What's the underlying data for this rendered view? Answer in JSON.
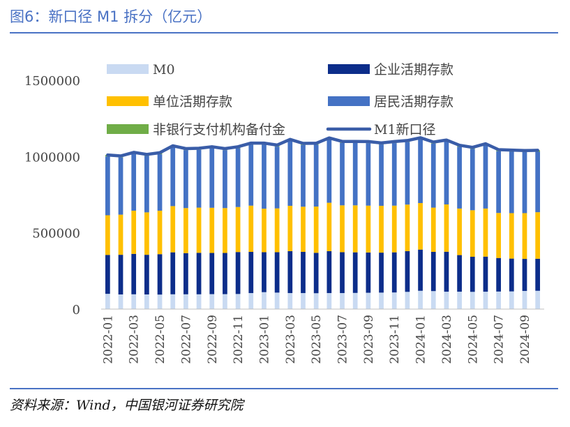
{
  "header": {
    "title": "图6：新口径 M1 拆分（亿元）"
  },
  "footer": {
    "source": "资料来源：Wind，中国银河证券研究院"
  },
  "chart_data": {
    "type": "bar",
    "stacked": true,
    "categories": [
      "2022-01",
      "2022-02",
      "2022-03",
      "2022-04",
      "2022-05",
      "2022-06",
      "2022-07",
      "2022-08",
      "2022-09",
      "2022-10",
      "2022-11",
      "2022-12",
      "2023-01",
      "2023-02",
      "2023-03",
      "2023-04",
      "2023-05",
      "2023-06",
      "2023-07",
      "2023-08",
      "2023-09",
      "2023-10",
      "2023-11",
      "2023-12",
      "2024-01",
      "2024-02",
      "2024-03",
      "2024-04",
      "2024-05",
      "2024-06",
      "2024-07",
      "2024-08",
      "2024-09",
      "2024-10"
    ],
    "tick_labels": [
      "2022-01",
      "2022-03",
      "2022-05",
      "2022-07",
      "2022-09",
      "2022-11",
      "2023-01",
      "2023-03",
      "2023-05",
      "2023-07",
      "2023-09",
      "2023-11",
      "2024-01",
      "2024-03",
      "2024-05",
      "2024-07",
      "2024-09"
    ],
    "ylim": [
      0,
      1500000
    ],
    "yticks": [
      "0",
      "500000",
      "1000000",
      "1500000"
    ],
    "grid": false,
    "legend_position": "top",
    "series": [
      {
        "name": "M0",
        "kind": "bar",
        "color": "#c9daf2",
        "values": [
          100000,
          96000,
          97000,
          96000,
          95000,
          97000,
          97000,
          97000,
          98000,
          98000,
          99000,
          105000,
          111000,
          108000,
          105000,
          105000,
          104000,
          105000,
          105000,
          106000,
          107000,
          108000,
          109000,
          113000,
          120000,
          118000,
          114000,
          114000,
          113000,
          114000,
          115000,
          116000,
          119000,
          120000
        ]
      },
      {
        "name": "企业活期存款",
        "kind": "bar",
        "color": "#0c2d8a",
        "values": [
          255000,
          260000,
          265000,
          260000,
          265000,
          275000,
          270000,
          272000,
          270000,
          270000,
          275000,
          270000,
          262000,
          265000,
          275000,
          270000,
          265000,
          275000,
          268000,
          266000,
          264000,
          262000,
          263000,
          267000,
          270000,
          257000,
          262000,
          240000,
          230000,
          230000,
          220000,
          215000,
          210000,
          210000
        ]
      },
      {
        "name": "单位活期存款",
        "kind": "bar",
        "color": "#ffc000",
        "values": [
          260000,
          263000,
          283000,
          278000,
          285000,
          303000,
          295000,
          296000,
          296000,
          294000,
          295000,
          303000,
          285000,
          287000,
          297000,
          296000,
          303000,
          317000,
          307000,
          308000,
          307000,
          307000,
          306000,
          305000,
          305000,
          290000,
          310000,
          305000,
          305000,
          315000,
          295000,
          298000,
          300000,
          305000
        ]
      },
      {
        "name": "居民活期存款",
        "kind": "bar",
        "color": "#4472c4",
        "values": [
          385000,
          375000,
          372000,
          370000,
          370000,
          385000,
          380000,
          379000,
          390000,
          380000,
          385000,
          400000,
          420000,
          405000,
          425000,
          405000,
          405000,
          415000,
          409000,
          409000,
          410000,
          402000,
          410000,
          410000,
          418000,
          420000,
          412000,
          405000,
          402000,
          415000,
          405000,
          403000,
          400000,
          396000
        ]
      },
      {
        "name": "非银行支付机构备付金",
        "kind": "bar",
        "color": "#70ad47",
        "values": [
          10000,
          10000,
          10000,
          10000,
          10000,
          10000,
          10000,
          10000,
          10000,
          10000,
          10000,
          10000,
          10000,
          10000,
          10000,
          10000,
          10000,
          10000,
          10000,
          10000,
          10000,
          10000,
          10000,
          10000,
          10000,
          10000,
          10000,
          10000,
          10000,
          10000,
          10000,
          10000,
          10000,
          10000
        ]
      },
      {
        "name": "M1新口径",
        "kind": "line",
        "color": "#3a5da8",
        "values": [
          1010000,
          1004000,
          1027000,
          1014000,
          1025000,
          1070000,
          1052000,
          1054000,
          1064000,
          1052000,
          1064000,
          1088000,
          1088000,
          1075000,
          1112000,
          1086000,
          1087000,
          1122000,
          1099000,
          1099000,
          1098000,
          1089000,
          1098000,
          1105000,
          1123000,
          1095000,
          1108000,
          1074000,
          1060000,
          1084000,
          1045000,
          1042000,
          1039000,
          1041000
        ]
      }
    ]
  }
}
